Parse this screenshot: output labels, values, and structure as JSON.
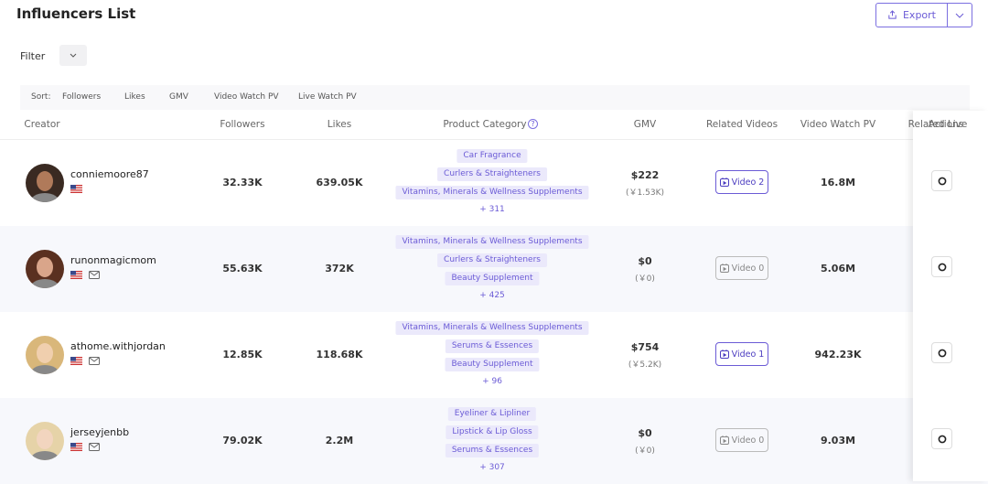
{
  "header": {
    "title": "Influencers List",
    "export": "Export"
  },
  "filter": {
    "label": "Filter"
  },
  "sort": {
    "label": "Sort:",
    "options": [
      "Followers",
      "Likes",
      "GMV",
      "Video Watch PV",
      "Live Watch PV"
    ]
  },
  "table": {
    "columns": [
      "Creator",
      "Followers",
      "Likes",
      "Product Category",
      "GMV",
      "Related Videos",
      "Video Watch PV",
      "Related Live",
      "Actions"
    ],
    "rows": [
      {
        "creator": "conniemoore87",
        "followers": "32.33K",
        "likes": "639.05K",
        "categories": [
          "Car Fragrance",
          "Curlers & Straighteners",
          "Vitamins, Minerals & Wellness Supplements"
        ],
        "more": "+ 311",
        "gmv": "$222",
        "gmv_cny": "(￥1.53K)",
        "video": "Video 2",
        "video_watch_pv": "16.8M"
      },
      {
        "creator": "runonmagicmom",
        "followers": "55.63K",
        "likes": "372K",
        "categories": [
          "Vitamins, Minerals & Wellness Supplements",
          "Curlers & Straighteners",
          "Beauty Supplement"
        ],
        "more": "+ 425",
        "gmv": "$0",
        "gmv_cny": "(￥0)",
        "video": "Video 0",
        "video_watch_pv": "5.06M"
      },
      {
        "creator": "athome.withjordan",
        "followers": "12.85K",
        "likes": "118.68K",
        "categories": [
          "Vitamins, Minerals & Wellness Supplements",
          "Serums & Essences",
          "Beauty Supplement"
        ],
        "more": "+ 96",
        "gmv": "$754",
        "gmv_cny": "(￥5.2K)",
        "video": "Video 1",
        "video_watch_pv": "942.23K"
      },
      {
        "creator": "jerseyjenbb",
        "followers": "79.02K",
        "likes": "2.2M",
        "categories": [
          "Eyeliner & Lipliner",
          "Lipstick & Lip Gloss",
          "Serums & Essences"
        ],
        "more": "+ 307",
        "gmv": "$0",
        "gmv_cny": "(￥0)",
        "video": "Video 0",
        "video_watch_pv": "9.03M"
      }
    ]
  }
}
